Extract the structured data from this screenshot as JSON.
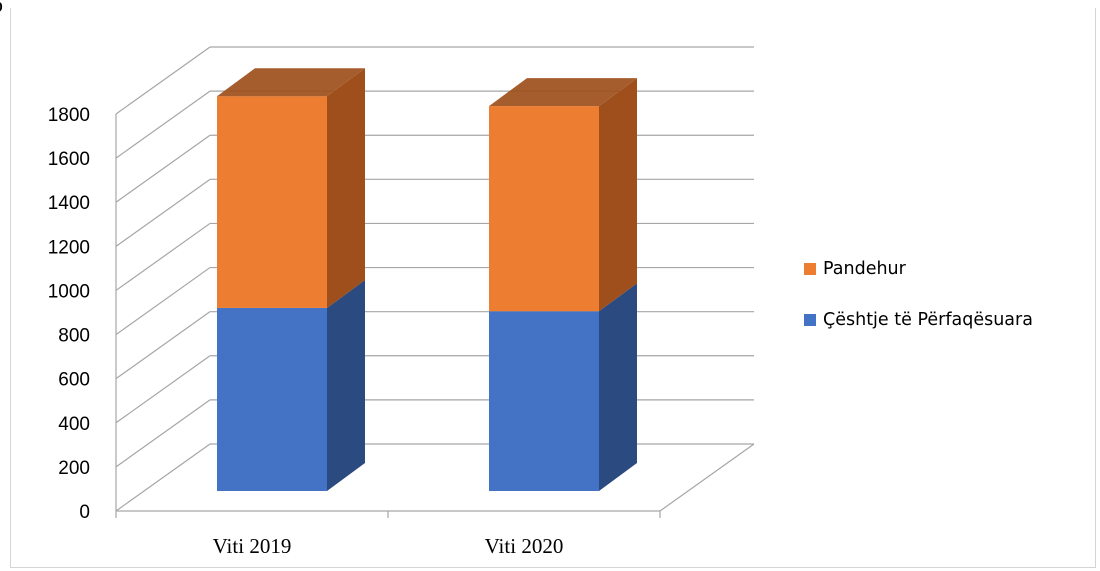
{
  "page_fragment": "p",
  "chart_data": {
    "type": "bar",
    "stacked": true,
    "three_d": true,
    "categories": [
      "Viti 2019",
      "Viti 2020"
    ],
    "series": [
      {
        "name": "Çështje të Përfaqësuara",
        "values": [
          830,
          815
        ],
        "color": "#4472C4",
        "side_color": "#2A4A80"
      },
      {
        "name": "Pandehur",
        "values": [
          960,
          930
        ],
        "color": "#ED7D31",
        "side_color": "#9E4F1B"
      }
    ],
    "ylim": [
      0,
      1800
    ],
    "yticks": [
      "0",
      "200",
      "400",
      "600",
      "800",
      "1000",
      "1200",
      "1400",
      "1600",
      "1800"
    ],
    "grid": true,
    "legend_position": "right",
    "title": "",
    "xlabel": "",
    "ylabel": ""
  }
}
